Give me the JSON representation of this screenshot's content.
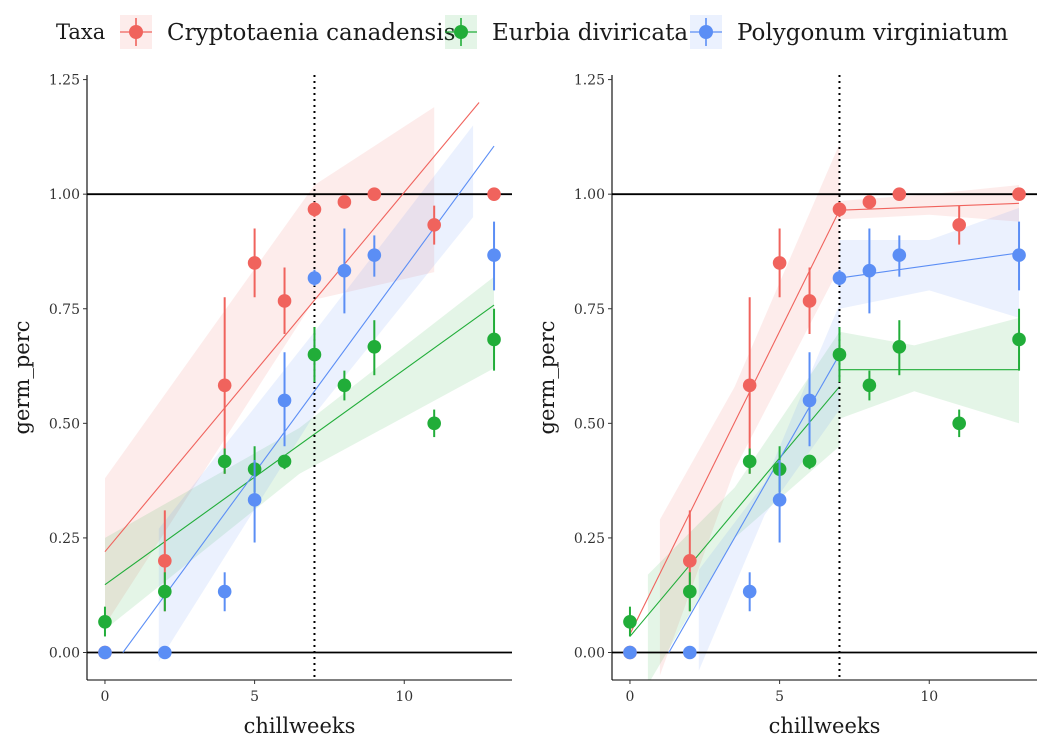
{
  "legend": {
    "title": "Taxa",
    "entries": [
      {
        "name": "Cryptotaenia canadensis",
        "color": "#F0635D"
      },
      {
        "name": "Eurbia diviricata",
        "color": "#21AD39"
      },
      {
        "name": "Polygonum virginiatum",
        "color": "#5B8EF5"
      }
    ]
  },
  "chart_data": [
    {
      "type": "scatter",
      "xlabel": "chillweeks",
      "ylabel": "germ_perc",
      "xlim": [
        -0.6,
        13.6
      ],
      "ylim": [
        -0.06,
        1.26
      ],
      "xticks": [
        0,
        5,
        10
      ],
      "yticks": [
        0.0,
        0.25,
        0.5,
        0.75,
        1.0,
        1.25
      ],
      "ytick_labels": [
        "0.00",
        "0.25",
        "0.50",
        "0.75",
        "1.00",
        "1.25"
      ],
      "hlines": [
        0,
        1
      ],
      "vline": 7,
      "fit": "linear",
      "series": [
        {
          "name": "Cryptotaenia canadensis",
          "color": "#F0635D",
          "points": [
            [
              0,
              0,
              0,
              0
            ],
            [
              2,
              0.2,
              0.09,
              0.31
            ],
            [
              4,
              0.583,
              0.39,
              0.775
            ],
            [
              5,
              0.85,
              0.775,
              0.925
            ],
            [
              6,
              0.767,
              0.695,
              0.84
            ],
            [
              7,
              0.967,
              0.95,
              0.983
            ],
            [
              8,
              0.983,
              0.97,
              0.995
            ],
            [
              9,
              1.0,
              1.0,
              1.0
            ],
            [
              11,
              0.933,
              0.89,
              0.975
            ],
            [
              13,
              1.0,
              1.0,
              1.0
            ]
          ],
          "fits": [
            {
              "x": [
                0,
                12.5
              ],
              "y": [
                0.22,
                1.2
              ],
              "band_x": [
                0,
                7,
                11
              ],
              "band_lo": [
                0.06,
                0.77,
                0.83
              ],
              "band_hi": [
                0.38,
                1.02,
                1.19
              ]
            }
          ]
        },
        {
          "name": "Eurbia diviricata",
          "color": "#21AD39",
          "points": [
            [
              0,
              0.067,
              0.035,
              0.1
            ],
            [
              2,
              0.133,
              0.09,
              0.175
            ],
            [
              4,
              0.417,
              0.39,
              0.445
            ],
            [
              5,
              0.4,
              0.35,
              0.45
            ],
            [
              6,
              0.417,
              0.4,
              0.43
            ],
            [
              7,
              0.65,
              0.59,
              0.71
            ],
            [
              8,
              0.583,
              0.55,
              0.615
            ],
            [
              9,
              0.667,
              0.605,
              0.725
            ],
            [
              11,
              0.5,
              0.47,
              0.53
            ],
            [
              13,
              0.683,
              0.615,
              0.75
            ]
          ],
          "fits": [
            {
              "x": [
                0,
                13
              ],
              "y": [
                0.148,
                0.758
              ],
              "band_x": [
                0,
                6.5,
                13
              ],
              "band_lo": [
                0.05,
                0.39,
                0.62
              ],
              "band_hi": [
                0.25,
                0.49,
                0.82
              ]
            }
          ]
        },
        {
          "name": "Polygonum virginiatum",
          "color": "#5B8EF5",
          "points": [
            [
              0,
              0,
              0,
              0
            ],
            [
              2,
              0,
              0,
              0
            ],
            [
              4,
              0.133,
              0.09,
              0.175
            ],
            [
              5,
              0.333,
              0.24,
              0.42
            ],
            [
              6,
              0.55,
              0.45,
              0.655
            ],
            [
              7,
              0.817,
              0.8,
              0.835
            ],
            [
              8,
              0.833,
              0.74,
              0.925
            ],
            [
              9,
              0.867,
              0.82,
              0.91
            ],
            [
              13,
              0.867,
              0.79,
              0.94
            ]
          ],
          "fits": [
            {
              "x": [
                0.6,
                13
              ],
              "y": [
                0,
                1.105
              ],
              "band_x": [
                1.8,
                7,
                12.3
              ],
              "band_lo": [
                -0.02,
                0.52,
                0.95
              ],
              "band_hi": [
                0.27,
                0.7,
                1.15
              ]
            }
          ]
        }
      ]
    },
    {
      "type": "scatter",
      "xlabel": "chillweeks",
      "ylabel": "germ_perc",
      "xlim": [
        -0.6,
        13.6
      ],
      "ylim": [
        -0.06,
        1.26
      ],
      "xticks": [
        0,
        5,
        10
      ],
      "yticks": [
        0.0,
        0.25,
        0.5,
        0.75,
        1.0,
        1.25
      ],
      "ytick_labels": [
        "0.00",
        "0.25",
        "0.50",
        "0.75",
        "1.00",
        "1.25"
      ],
      "hlines": [
        0,
        1
      ],
      "vline": 7,
      "fit": "piecewise linear, breakpoint at chillweeks = 7",
      "series": [
        {
          "name": "Cryptotaenia canadensis",
          "color": "#F0635D",
          "points": [
            [
              0,
              0,
              0,
              0
            ],
            [
              2,
              0.2,
              0.09,
              0.31
            ],
            [
              4,
              0.583,
              0.39,
              0.775
            ],
            [
              5,
              0.85,
              0.775,
              0.925
            ],
            [
              6,
              0.767,
              0.695,
              0.84
            ],
            [
              7,
              0.967,
              0.95,
              0.983
            ],
            [
              8,
              0.983,
              0.97,
              0.995
            ],
            [
              9,
              1.0,
              1.0,
              1.0
            ],
            [
              11,
              0.933,
              0.89,
              0.975
            ],
            [
              13,
              1.0,
              1.0,
              1.0
            ]
          ],
          "fits": [
            {
              "x": [
                0,
                7
              ],
              "y": [
                0.04,
                0.965
              ],
              "band_x": [
                1,
                3.5,
                7
              ],
              "band_lo": [
                -0.05,
                0.4,
                0.84
              ],
              "band_hi": [
                0.29,
                0.58,
                1.11
              ]
            },
            {
              "x": [
                7,
                13
              ],
              "y": [
                0.965,
                0.98
              ],
              "band_x": [
                7,
                10,
                13
              ],
              "band_lo": [
                0.945,
                0.955,
                0.94
              ],
              "band_hi": [
                0.985,
                1.0,
                1.02
              ]
            }
          ]
        },
        {
          "name": "Eurbia diviricata",
          "color": "#21AD39",
          "points": [
            [
              0,
              0.067,
              0.035,
              0.1
            ],
            [
              2,
              0.133,
              0.09,
              0.175
            ],
            [
              4,
              0.417,
              0.39,
              0.445
            ],
            [
              5,
              0.4,
              0.35,
              0.45
            ],
            [
              6,
              0.417,
              0.4,
              0.43
            ],
            [
              7,
              0.65,
              0.59,
              0.71
            ],
            [
              8,
              0.583,
              0.55,
              0.615
            ],
            [
              9,
              0.667,
              0.605,
              0.725
            ],
            [
              11,
              0.5,
              0.47,
              0.53
            ],
            [
              13,
              0.683,
              0.615,
              0.75
            ]
          ],
          "fits": [
            {
              "x": [
                0,
                7
              ],
              "y": [
                0.035,
                0.58
              ],
              "band_x": [
                0.6,
                3.5,
                7
              ],
              "band_lo": [
                -0.07,
                0.25,
                0.45
              ],
              "band_hi": [
                0.17,
                0.36,
                0.7
              ]
            },
            {
              "x": [
                7,
                13
              ],
              "y": [
                0.617,
                0.617
              ],
              "band_x": [
                7,
                9.5,
                13
              ],
              "band_lo": [
                0.51,
                0.57,
                0.5
              ],
              "band_hi": [
                0.7,
                0.67,
                0.73
              ]
            }
          ]
        },
        {
          "name": "Polygonum virginiatum",
          "color": "#5B8EF5",
          "points": [
            [
              0,
              0,
              0,
              0
            ],
            [
              2,
              0,
              0,
              0
            ],
            [
              4,
              0.133,
              0.09,
              0.175
            ],
            [
              5,
              0.333,
              0.24,
              0.42
            ],
            [
              6,
              0.55,
              0.45,
              0.655
            ],
            [
              7,
              0.817,
              0.8,
              0.835
            ],
            [
              8,
              0.833,
              0.74,
              0.925
            ],
            [
              9,
              0.867,
              0.82,
              0.91
            ],
            [
              13,
              0.867,
              0.79,
              0.94
            ]
          ],
          "fits": [
            {
              "x": [
                1.3,
                7
              ],
              "y": [
                0,
                0.65
              ],
              "band_x": [
                2.3,
                4.5,
                7
              ],
              "band_lo": [
                -0.04,
                0.3,
                0.53
              ],
              "band_hi": [
                0.18,
                0.37,
                0.76
              ]
            },
            {
              "x": [
                7,
                13
              ],
              "y": [
                0.817,
                0.872
              ],
              "band_x": [
                7,
                10,
                13
              ],
              "band_lo": [
                0.75,
                0.79,
                0.73
              ],
              "band_hi": [
                0.9,
                0.9,
                0.97
              ]
            }
          ]
        }
      ]
    }
  ]
}
